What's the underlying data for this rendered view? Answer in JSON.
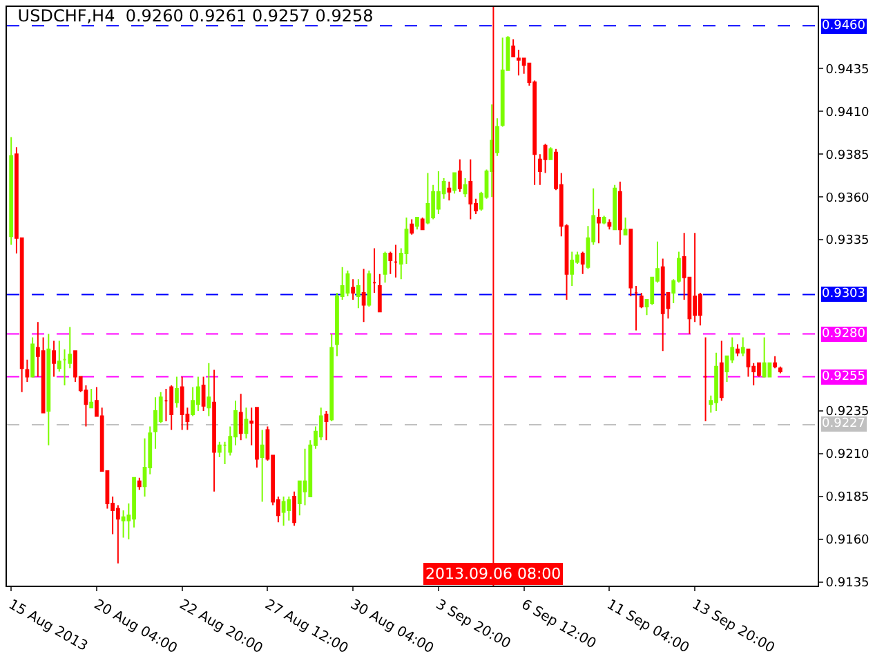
{
  "chart_data": {
    "type": "candlestick",
    "title": "USDCHF,H4  0.9260 0.9261 0.9257 0.9258",
    "categories": [
      "15 Aug 2013",
      null,
      null,
      null,
      null,
      null,
      null,
      null,
      null,
      null,
      null,
      null,
      null,
      null,
      null,
      null,
      "20 Aug 04:00",
      null,
      null,
      null,
      null,
      null,
      null,
      null,
      null,
      null,
      null,
      null,
      null,
      null,
      null,
      null,
      "22 Aug 20:00",
      null,
      null,
      null,
      null,
      null,
      null,
      null,
      null,
      null,
      null,
      null,
      null,
      null,
      null,
      null,
      "27 Aug 12:00",
      null,
      null,
      null,
      null,
      null,
      null,
      null,
      null,
      null,
      null,
      null,
      null,
      null,
      null,
      null,
      "30 Aug 04:00",
      null,
      null,
      null,
      null,
      null,
      null,
      null,
      null,
      null,
      null,
      null,
      null,
      null,
      null,
      null,
      "3 Sep 20:00",
      null,
      null,
      null,
      null,
      null,
      null,
      null,
      null,
      null,
      null,
      null,
      null,
      null,
      null,
      null,
      "6 Sep 12:00",
      null,
      null,
      null,
      null,
      null,
      null,
      null,
      null,
      null,
      null,
      null,
      null,
      null,
      null,
      null,
      "11 Sep 04:00",
      null,
      null,
      null,
      null,
      null,
      null,
      null,
      null,
      null,
      null,
      null,
      null,
      null,
      null,
      null,
      "13 Sep 20:00",
      null,
      null,
      null,
      null,
      null,
      null,
      null,
      null,
      null,
      null,
      null,
      null,
      null,
      null,
      null,
      null
    ],
    "ohlc": [
      [
        0.9337,
        0.9395,
        0.9332,
        0.9384
      ],
      [
        0.9385,
        0.9389,
        0.9327,
        0.9336
      ],
      [
        0.9336,
        0.9336,
        0.9246,
        0.926
      ],
      [
        0.9259,
        0.9265,
        0.9252,
        0.9255
      ],
      [
        0.9255,
        0.9278,
        0.9255,
        0.9274
      ],
      [
        0.9272,
        0.9287,
        0.9255,
        0.9267
      ],
      [
        0.927,
        0.9278,
        0.9234,
        0.9234
      ],
      [
        0.9235,
        0.928,
        0.9215,
        0.9271
      ],
      [
        0.927,
        0.9276,
        0.9255,
        0.9263
      ],
      [
        0.926,
        0.9276,
        0.9258,
        0.9264
      ],
      [
        0.9265,
        0.9271,
        0.925,
        0.9265
      ],
      [
        0.9263,
        0.9284,
        0.926,
        0.9268
      ],
      [
        0.927,
        0.927,
        0.9252,
        0.9255
      ],
      [
        0.9255,
        0.9255,
        0.9246,
        0.9247
      ],
      [
        0.9247,
        0.925,
        0.9226,
        0.9239
      ],
      [
        0.9237,
        0.9248,
        0.9237,
        0.924
      ],
      [
        0.9241,
        0.9249,
        0.9232,
        0.9232
      ],
      [
        0.9232,
        0.9237,
        0.92,
        0.92
      ],
      [
        0.92,
        0.92,
        0.9178,
        0.9181
      ],
      [
        0.9181,
        0.9185,
        0.9163,
        0.9177
      ],
      [
        0.9178,
        0.918,
        0.9146,
        0.9172
      ],
      [
        0.9171,
        0.9177,
        0.9161,
        0.9173
      ],
      [
        0.9171,
        0.9181,
        0.916,
        0.9174
      ],
      [
        0.9172,
        0.9196,
        0.9167,
        0.9196
      ],
      [
        0.9194,
        0.9196,
        0.9189,
        0.9191
      ],
      [
        0.9191,
        0.9219,
        0.9185,
        0.9202
      ],
      [
        0.9202,
        0.9226,
        0.9198,
        0.9222
      ],
      [
        0.9223,
        0.9243,
        0.9213,
        0.9235
      ],
      [
        0.9229,
        0.9246,
        0.9228,
        0.9243
      ],
      [
        0.9241,
        0.9248,
        0.9229,
        0.9241
      ],
      [
        0.9249,
        0.925,
        0.9224,
        0.9233
      ],
      [
        0.924,
        0.9255,
        0.9237,
        0.9248
      ],
      [
        0.9249,
        0.9255,
        0.9224,
        0.9233
      ],
      [
        0.9233,
        0.9237,
        0.9224,
        0.9229
      ],
      [
        0.9233,
        0.9249,
        0.9232,
        0.9241
      ],
      [
        0.9239,
        0.9255,
        0.9235,
        0.9249
      ],
      [
        0.925,
        0.9255,
        0.9235,
        0.9238
      ],
      [
        0.9237,
        0.9263,
        0.9232,
        0.9243
      ],
      [
        0.924,
        0.9259,
        0.9188,
        0.9211
      ],
      [
        0.9211,
        0.9217,
        0.9208,
        0.9215
      ],
      [
        0.9215,
        0.9217,
        0.9204,
        0.9215
      ],
      [
        0.9211,
        0.9226,
        0.9209,
        0.922
      ],
      [
        0.922,
        0.9241,
        0.9215,
        0.9235
      ],
      [
        0.9234,
        0.9245,
        0.9218,
        0.9222
      ],
      [
        0.9222,
        0.9237,
        0.9219,
        0.923
      ],
      [
        0.9229,
        0.9237,
        0.9215,
        0.9228
      ],
      [
        0.9237,
        0.9237,
        0.9202,
        0.9207
      ],
      [
        0.9208,
        0.9224,
        0.9182,
        0.9215
      ],
      [
        0.9224,
        0.9226,
        0.9206,
        0.9207
      ],
      [
        0.9209,
        0.9209,
        0.918,
        0.9182
      ],
      [
        0.9183,
        0.9185,
        0.917,
        0.9174
      ],
      [
        0.9176,
        0.9185,
        0.9168,
        0.9182
      ],
      [
        0.9177,
        0.9185,
        0.9171,
        0.9183
      ],
      [
        0.9185,
        0.9188,
        0.9168,
        0.917
      ],
      [
        0.9181,
        0.9194,
        0.9174,
        0.9194
      ],
      [
        0.9188,
        0.9213,
        0.918,
        0.9194
      ],
      [
        0.9185,
        0.9218,
        0.9185,
        0.9215
      ],
      [
        0.9215,
        0.9226,
        0.9213,
        0.9223
      ],
      [
        0.922,
        0.9237,
        0.9218,
        0.9232
      ],
      [
        0.9233,
        0.9235,
        0.9218,
        0.9229
      ],
      [
        0.923,
        0.928,
        0.9229,
        0.9272
      ],
      [
        0.9274,
        0.9304,
        0.9267,
        0.9302
      ],
      [
        0.9302,
        0.9319,
        0.93,
        0.9308
      ],
      [
        0.9304,
        0.9317,
        0.9302,
        0.9315
      ],
      [
        0.9307,
        0.9312,
        0.93,
        0.9304
      ],
      [
        0.9302,
        0.9312,
        0.9295,
        0.9308
      ],
      [
        0.9304,
        0.9318,
        0.9287,
        0.9297
      ],
      [
        0.9297,
        0.9317,
        0.9296,
        0.9315
      ],
      [
        0.931,
        0.933,
        0.9304,
        0.931
      ],
      [
        0.9308,
        0.9315,
        0.9293,
        0.9293
      ],
      [
        0.9315,
        0.9328,
        0.931,
        0.9327
      ],
      [
        0.9327,
        0.9328,
        0.9315,
        0.9323
      ],
      [
        0.9322,
        0.9332,
        0.9313,
        0.9322
      ],
      [
        0.9321,
        0.933,
        0.9312,
        0.9327
      ],
      [
        0.9327,
        0.9348,
        0.9321,
        0.9341
      ],
      [
        0.9344,
        0.9347,
        0.9338,
        0.9339
      ],
      [
        0.9343,
        0.9348,
        0.9341,
        0.9348
      ],
      [
        0.9347,
        0.9348,
        0.9341,
        0.9341
      ],
      [
        0.9345,
        0.9374,
        0.9344,
        0.9356
      ],
      [
        0.9348,
        0.9367,
        0.9347,
        0.9363
      ],
      [
        0.9353,
        0.9375,
        0.935,
        0.9363
      ],
      [
        0.9362,
        0.9371,
        0.9359,
        0.9369
      ],
      [
        0.9365,
        0.9369,
        0.9358,
        0.9363
      ],
      [
        0.9364,
        0.9374,
        0.9362,
        0.9374
      ],
      [
        0.9375,
        0.9382,
        0.9363,
        0.9365
      ],
      [
        0.9362,
        0.9371,
        0.936,
        0.9367
      ],
      [
        0.9369,
        0.9382,
        0.9347,
        0.9356
      ],
      [
        0.9356,
        0.9359,
        0.935,
        0.9352
      ],
      [
        0.9353,
        0.9363,
        0.9352,
        0.9362
      ],
      [
        0.936,
        0.9376,
        0.9359,
        0.9375
      ],
      [
        0.9375,
        0.9414,
        0.936,
        0.9393
      ],
      [
        0.9386,
        0.9406,
        0.9384,
        0.9401
      ],
      [
        0.9402,
        0.9453,
        0.9401,
        0.9434
      ],
      [
        0.9434,
        0.9454,
        0.9434,
        0.9453
      ],
      [
        0.9448,
        0.9452,
        0.9442,
        0.9442
      ],
      [
        0.9441,
        0.9446,
        0.9431,
        0.944
      ],
      [
        0.9441,
        0.9441,
        0.9432,
        0.9437
      ],
      [
        0.9438,
        0.9438,
        0.9425,
        0.9427
      ],
      [
        0.9427,
        0.9428,
        0.9367,
        0.9385
      ],
      [
        0.9382,
        0.9385,
        0.9367,
        0.9375
      ],
      [
        0.939,
        0.9391,
        0.9374,
        0.9382
      ],
      [
        0.9382,
        0.9389,
        0.9382,
        0.9388
      ],
      [
        0.9386,
        0.9388,
        0.9364,
        0.9365
      ],
      [
        0.9367,
        0.9374,
        0.9337,
        0.9343
      ],
      [
        0.9343,
        0.9344,
        0.93,
        0.9315
      ],
      [
        0.9315,
        0.9328,
        0.9308,
        0.9323
      ],
      [
        0.9322,
        0.9328,
        0.9321,
        0.9326
      ],
      [
        0.9327,
        0.9328,
        0.9315,
        0.9321
      ],
      [
        0.9319,
        0.9343,
        0.9318,
        0.9336
      ],
      [
        0.9334,
        0.9365,
        0.9332,
        0.9349
      ],
      [
        0.9348,
        0.9353,
        0.9333,
        0.9345
      ],
      [
        0.9345,
        0.9349,
        0.9344,
        0.9348
      ],
      [
        0.9345,
        0.9347,
        0.9341,
        0.9343
      ],
      [
        0.9341,
        0.9367,
        0.9341,
        0.9365
      ],
      [
        0.9363,
        0.9369,
        0.9332,
        0.9341
      ],
      [
        0.9338,
        0.9348,
        0.9338,
        0.9341
      ],
      [
        0.9341,
        0.9341,
        0.9302,
        0.9307
      ],
      [
        0.9304,
        0.9308,
        0.9282,
        0.9304
      ],
      [
        0.9302,
        0.9304,
        0.9295,
        0.9296
      ],
      [
        0.9296,
        0.93,
        0.9291,
        0.93
      ],
      [
        0.9298,
        0.9313,
        0.9297,
        0.9313
      ],
      [
        0.9311,
        0.9334,
        0.931,
        0.9318
      ],
      [
        0.9319,
        0.9324,
        0.927,
        0.9292
      ],
      [
        0.9304,
        0.9304,
        0.9289,
        0.9295
      ],
      [
        0.9304,
        0.9312,
        0.9298,
        0.9311
      ],
      [
        0.9311,
        0.9328,
        0.931,
        0.9324
      ],
      [
        0.9325,
        0.9339,
        0.93,
        0.9313
      ],
      [
        0.9313,
        0.9313,
        0.928,
        0.9289
      ],
      [
        0.9302,
        0.9339,
        0.9287,
        0.9291
      ],
      [
        0.9303,
        0.9304,
        0.9285,
        0.9291
      ],
      [
        0.9255,
        0.9278,
        0.9229,
        0.9255
      ],
      [
        0.9239,
        0.9244,
        0.9234,
        0.9241
      ],
      [
        0.924,
        0.9269,
        0.9235,
        0.9261
      ],
      [
        0.9263,
        0.9276,
        0.9241,
        0.9243
      ],
      [
        0.9258,
        0.9267,
        0.9252,
        0.9267
      ],
      [
        0.9265,
        0.9278,
        0.9263,
        0.9272
      ],
      [
        0.9271,
        0.9274,
        0.9267,
        0.9269
      ],
      [
        0.9269,
        0.9278,
        0.9267,
        0.9272
      ],
      [
        0.9271,
        0.9271,
        0.9255,
        0.9261
      ],
      [
        0.9261,
        0.9263,
        0.925,
        0.9258
      ],
      [
        0.9263,
        0.9263,
        0.9255,
        0.9256
      ],
      [
        0.9255,
        0.9278,
        0.9255,
        0.9263
      ],
      [
        0.9255,
        0.9263,
        0.9255,
        0.9263
      ],
      [
        0.9263,
        0.9267,
        0.926,
        0.9261
      ],
      [
        0.926,
        0.9261,
        0.9257,
        0.9258
      ]
    ],
    "ylim": [
      0.9133,
      0.9471
    ],
    "yticks": [
      0.9135,
      {
        "value": 0.916,
        "label": "0.9160"
      },
      0.9185,
      {
        "value": 0.921,
        "label": "0.9210"
      },
      0.9235,
      0.9335,
      {
        "value": 0.936,
        "label": "0.9360"
      },
      0.9385,
      {
        "value": 0.941,
        "label": "0.9410"
      },
      0.9435
    ],
    "ref_lines": [
      {
        "axis": "y",
        "value": 0.946,
        "label": "0.9460",
        "color": "#0000ff",
        "line_style": "dashed"
      },
      {
        "axis": "y",
        "value": 0.9303,
        "label": "0.9303",
        "color": "#0000ff",
        "line_style": "dashed"
      },
      {
        "axis": "y",
        "value": 0.928,
        "label": "0.9280",
        "color": "#ff00ff",
        "line_style": "dashed"
      },
      {
        "axis": "y",
        "value": 0.9255,
        "label": "0.9255",
        "color": "#ff00ff",
        "line_style": "dashed"
      },
      {
        "axis": "y",
        "value": 0.9227,
        "label": "0.9227",
        "color": "#c0c0c0",
        "line_style": "dashed"
      }
    ],
    "annotations": [
      "2013.09.06 08:00"
    ],
    "grid": false,
    "legend": false
  }
}
